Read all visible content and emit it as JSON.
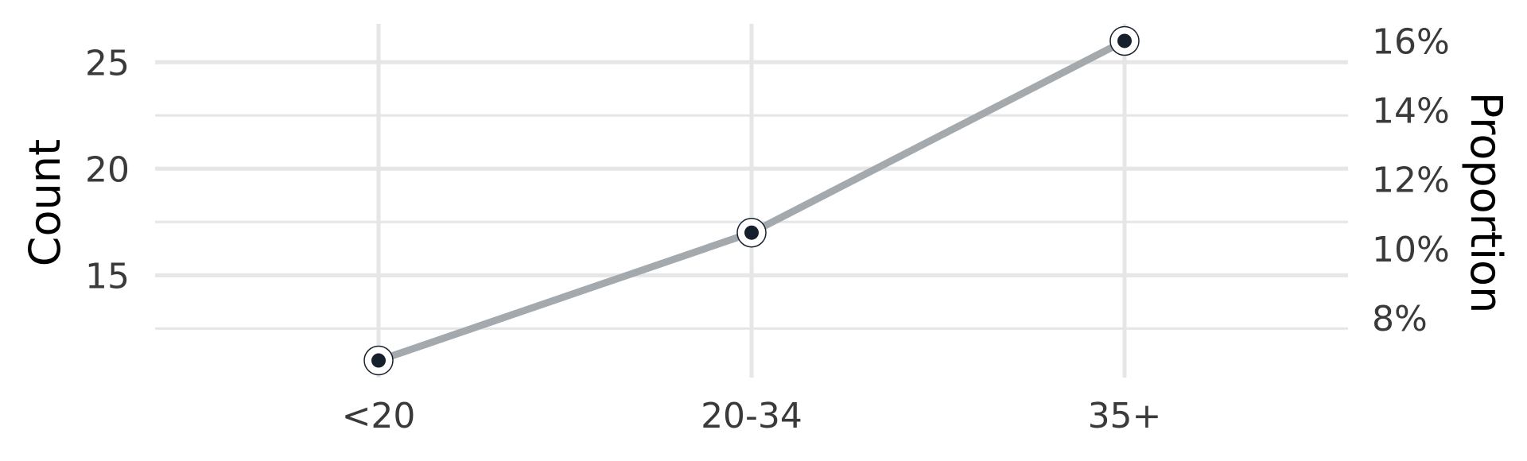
{
  "chart_data": {
    "type": "line",
    "title": "",
    "xlabel": "",
    "ylabel": "Count",
    "y2label": "Proportion",
    "categories": [
      "<20",
      "20-34",
      "35+"
    ],
    "series": [
      {
        "values": [
          11,
          17,
          26
        ],
        "color": "#a3a9ad",
        "marker_color": "#16202c"
      }
    ],
    "ylim": [
      10.2,
      26.8
    ],
    "yticks": [
      15,
      20,
      25
    ],
    "y_minor_gridlines": [
      12.5,
      17.5,
      22.5
    ],
    "y2ticks": [
      {
        "value": 0.08,
        "label": "8%"
      },
      {
        "value": 0.1,
        "label": "10%"
      },
      {
        "value": 0.12,
        "label": "12%"
      },
      {
        "value": 0.14,
        "label": "14%"
      },
      {
        "value": 0.16,
        "label": "16%"
      }
    ],
    "y2_scale_total": 162.5,
    "grid": true,
    "gridline_color": "#e6e6e6"
  }
}
